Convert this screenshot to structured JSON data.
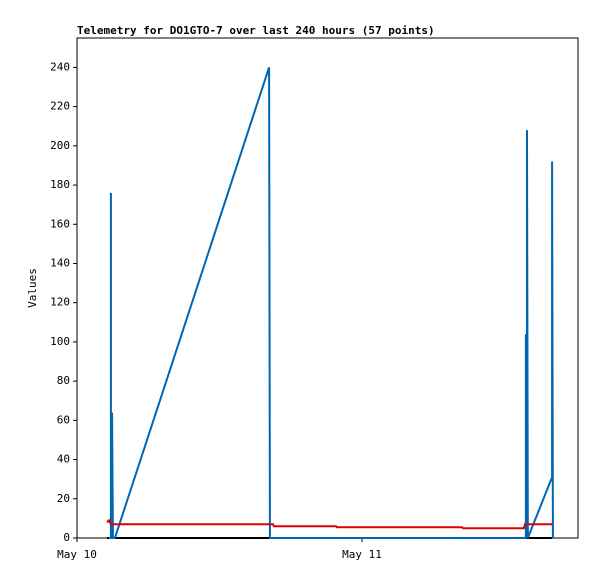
{
  "chart_data": {
    "type": "line",
    "title": "Telemetry for DO1GTO-7 over last 240 hours (57 points)",
    "y_label": "Values",
    "xlim": [
      0,
      1.758
    ],
    "xticks": [
      {
        "value": 0,
        "label": "May 10"
      },
      {
        "value": 1,
        "label": "May 11"
      }
    ],
    "ylim": [
      0,
      255
    ],
    "yticks": [
      0,
      20,
      40,
      60,
      80,
      100,
      120,
      140,
      160,
      180,
      200,
      220,
      240
    ],
    "series": [
      {
        "color": "#000000",
        "x": [
          0.105,
          1.667
        ],
        "values": [
          0,
          0
        ]
      },
      {
        "color": "#0066b3",
        "x": [
          0.112,
          0.119,
          0.119,
          0.119,
          0.123,
          0.126,
          0.133,
          0.674,
          0.677,
          1.575,
          1.575,
          1.579,
          1.579,
          1.582,
          1.667,
          1.667,
          1.67
        ],
        "values": [
          0,
          0,
          176,
          0,
          64,
          0,
          0,
          240,
          0,
          0,
          104,
          0,
          208,
          0,
          31,
          192,
          0
        ]
      },
      {
        "color": "#dd0000",
        "x": [
          0.105,
          0.112,
          0.119,
          0.677,
          0.688,
          0.691,
          0.909,
          0.912,
          1.351,
          1.354,
          1.568,
          1.572,
          1.667
        ],
        "values": [
          8,
          9,
          7,
          7,
          7,
          6,
          6,
          5.5,
          5.5,
          5,
          5,
          7,
          7
        ]
      }
    ]
  }
}
